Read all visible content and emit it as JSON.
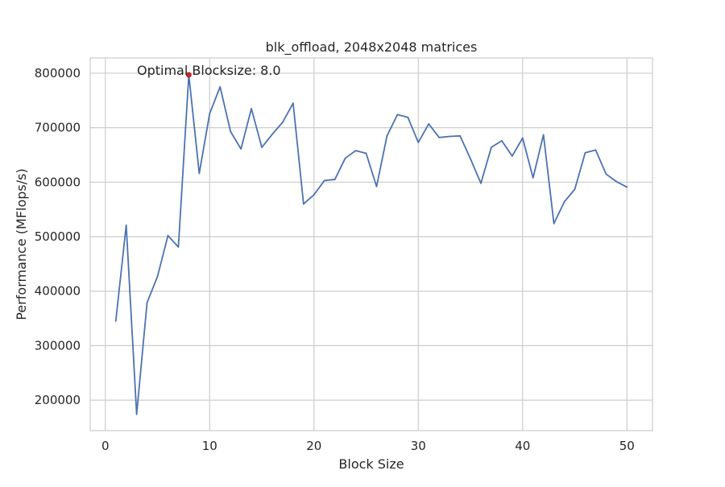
{
  "chart_data": {
    "type": "line",
    "title": "blk_offload, 2048x2048 matrices",
    "xlabel": "Block Size",
    "ylabel": "Performance (MFlops/s)",
    "xlim": [
      -1.45,
      52.45
    ],
    "ylim": [
      144000,
      828000
    ],
    "xticks": [
      0,
      10,
      20,
      30,
      40,
      50
    ],
    "yticks": [
      200000,
      300000,
      400000,
      500000,
      600000,
      700000,
      800000
    ],
    "grid": true,
    "line_color": "#4c72b0",
    "marker_color": "#c0282d",
    "series": [
      {
        "x": [
          1,
          2,
          3,
          4,
          5,
          6,
          7,
          8,
          9,
          10,
          11,
          12,
          13,
          14,
          15,
          16,
          17,
          18,
          19,
          20,
          21,
          22,
          23,
          24,
          25,
          26,
          27,
          28,
          29,
          30,
          31,
          32,
          33,
          34,
          35,
          36,
          37,
          38,
          39,
          40,
          41,
          42,
          43,
          44,
          45,
          46,
          47,
          48,
          49,
          50
        ],
        "values": [
          345000,
          521000,
          174000,
          379000,
          427000,
          502000,
          481000,
          797000,
          616000,
          726000,
          775000,
          693000,
          661000,
          735000,
          664000,
          688000,
          710000,
          745000,
          560000,
          577000,
          603000,
          605000,
          644000,
          658000,
          653000,
          592000,
          685000,
          724000,
          719000,
          673000,
          707000,
          682000,
          684000,
          685000,
          643000,
          598000,
          664000,
          676000,
          648000,
          681000,
          608000,
          687000,
          524000,
          564000,
          587000,
          654000,
          659000,
          615000,
          601000,
          591000
        ]
      }
    ],
    "highlight": {
      "x": 8,
      "y": 797000
    },
    "annotation": "Optimal Blocksize: 8.0"
  }
}
